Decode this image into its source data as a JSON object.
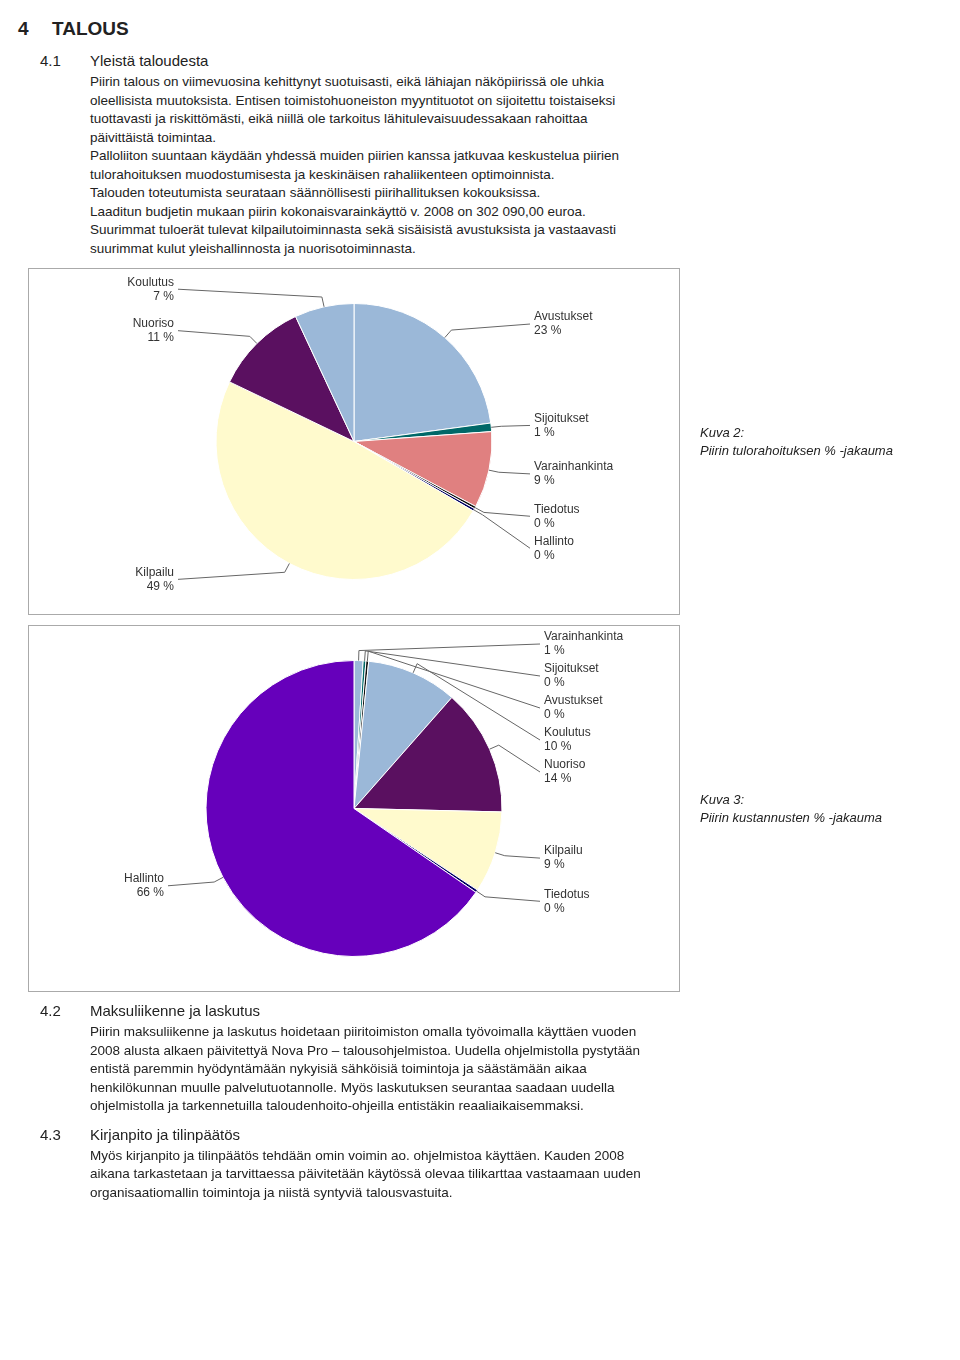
{
  "chart_data": [
    {
      "type": "pie",
      "title": "Kuva 2:",
      "subtitle": "Piirin tulorahoituksen % -jakauma",
      "annotations": [
        [
          "4",
          "TALOUS"
        ],
        [
          "4.1",
          "Yleistä taloudesta"
        ],
        [
          "Piirin talous on viimevuosina kehittynyt suotuisasti, eikä lähiajan näköpiirissä ole uhkia"
        ],
        [
          "oleellisista muutoksista. Entisen toimistohuoneiston myyntituotot on sijoitettu toistaiseksi"
        ],
        [
          "tuottavasti ja riskittömästi, eikä niillä ole tarkoitus lähitulevaisuudessakaan rahoittaa"
        ],
        [
          "päivittäistä toimintaa."
        ],
        [
          "Palloliiton suuntaan käydään yhdessä muiden piirien kanssa jatkuvaa keskustelua piirien"
        ],
        [
          "tulorahoituksen muodostumisesta ja keskinäisen rahaliikenteen optimoinnista."
        ],
        [
          "Talouden toteutumista seurataan säännöllisesti piirihallituksen kokouksissa."
        ],
        [
          "Laaditun budjetin mukaan piirin kokonaisvarainkäyttö v. 2008 on 302 090,00 euroa."
        ],
        [
          "Suurimmat tuloerät tulevat kilpailutoiminnasta sekä sisäisistä avustuksista ja vastaavasti"
        ],
        [
          "suurimmat kulut yleishallinnosta ja nuorisotoiminnasta."
        ]
      ],
      "categories": [
        "Avustukset",
        "Sijoitukset",
        "Varainhankinta",
        "Tiedotus",
        "Hallinto",
        "Kilpailu",
        "Nuoriso",
        "Koulutus"
      ],
      "values": [
        23,
        1,
        9,
        0.3,
        0.3,
        49,
        11,
        7
      ],
      "value_labels": [
        "23 %",
        "1 %",
        "9 %",
        "0 %",
        "0 %",
        "49 %",
        "11 %",
        "7 %"
      ],
      "colors": [
        "#9BB8D8",
        "#006868",
        "#E08080",
        "#111111",
        "#000060",
        "#FFFACD",
        "#5A1060",
        "#9BB8D8"
      ],
      "data_labels": true,
      "legend": false
    },
    {
      "type": "pie",
      "title": "Kuva 3:",
      "subtitle": "Piirin kustannusten % -jakauma",
      "annotations": [
        [
          "4.2",
          "Maksuliikenne ja laskutus"
        ],
        [
          "Piirin maksuliikenne ja laskutus hoidetaan piiritoimiston omalla työvoimalla käyttäen vuoden"
        ],
        [
          "2008 alusta alkaen päivitettyä Nova Pro – talousohjelmistoa. Uudella ohjelmistolla pystytään"
        ],
        [
          "entistä paremmin hyödyntämään nykyisiä sähköisiä toimintoja ja säästämään aikaa"
        ],
        [
          "henkilökunnan muulle palvelutuotannolle. Myös laskutuksen seurantaa saadaan uudella"
        ],
        [
          "ohjelmistolla ja tarkennetuilla taloudenhoito-ohjeilla entistäkin reaaliaikaisemmaksi."
        ],
        [
          "4.3",
          "Kirjanpito ja tilinpäätös"
        ],
        [
          "Myös kirjanpito ja tilinpäätös tehdään omin voimin ao. ohjelmistoa käyttäen. Kauden 2008"
        ],
        [
          "aikana tarkastetaan ja tarvittaessa päivitetään käytössä olevaa tilikarttaa vastaamaan uuden"
        ],
        [
          "organisaatiomallin toimintoja ja niistä syntyviä talousvastuita."
        ]
      ],
      "categories": [
        "Varainhankinta",
        "Sijoitukset",
        "Avustukset",
        "Koulutus",
        "Nuoriso",
        "Kilpailu",
        "Tiedotus",
        "Hallinto"
      ],
      "values": [
        1,
        0.3,
        0.3,
        10,
        14,
        9,
        0.3,
        66
      ],
      "value_labels": [
        "1 %",
        "0 %",
        "0 %",
        "10 %",
        "14 %",
        "9 %",
        "0 %",
        "66 %"
      ],
      "colors": [
        "#9BB8D8",
        "#006868",
        "#111111",
        "#9BB8D8",
        "#5A1060",
        "#FFFACD",
        "#000060",
        "#6600BB"
      ],
      "data_labels": true,
      "legend": false
    }
  ]
}
